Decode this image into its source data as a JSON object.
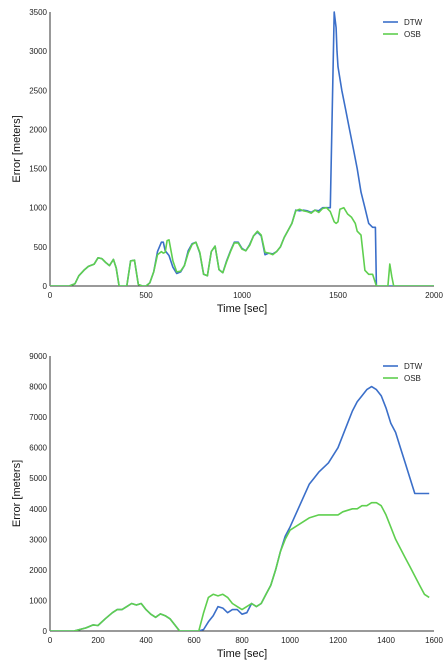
{
  "chart_data": [
    {
      "type": "line",
      "xlabel": "Time [sec]",
      "ylabel": "Error [meters]",
      "xlim": [
        0,
        2000
      ],
      "ylim": [
        0,
        3500
      ],
      "xticks": [
        "0",
        "500",
        "1000",
        "1500",
        "2000"
      ],
      "yticks": [
        "0",
        "500",
        "1000",
        "1500",
        "2000",
        "2500",
        "3000",
        "3500"
      ],
      "legend": "top-right",
      "grid": false,
      "series": [
        {
          "name": "DTW",
          "color": "#3b6fc9",
          "x": [
            0,
            100,
            130,
            150,
            180,
            200,
            230,
            250,
            270,
            290,
            310,
            330,
            345,
            360,
            380,
            400,
            420,
            440,
            460,
            480,
            500,
            520,
            540,
            560,
            580,
            590,
            600,
            620,
            640,
            660,
            680,
            700,
            720,
            740,
            760,
            780,
            800,
            820,
            840,
            860,
            880,
            900,
            920,
            940,
            960,
            980,
            1000,
            1020,
            1040,
            1060,
            1080,
            1100,
            1120,
            1140,
            1160,
            1180,
            1200,
            1220,
            1240,
            1260,
            1280,
            1300,
            1320,
            1340,
            1360,
            1380,
            1400,
            1420,
            1440,
            1460,
            1480,
            1490,
            1495,
            1500,
            1520,
            1540,
            1560,
            1580,
            1600,
            1620,
            1640,
            1660,
            1680,
            1695,
            1700,
            1710,
            1720,
            1740,
            1760,
            1770,
            1780,
            1790,
            1800,
            1850,
            2000
          ],
          "y": [
            0,
            0,
            30,
            130,
            210,
            250,
            280,
            360,
            350,
            300,
            260,
            340,
            230,
            0,
            0,
            0,
            320,
            330,
            20,
            0,
            0,
            40,
            180,
            440,
            560,
            560,
            450,
            390,
            240,
            160,
            180,
            260,
            450,
            540,
            560,
            420,
            150,
            130,
            440,
            510,
            210,
            170,
            320,
            450,
            560,
            560,
            480,
            450,
            530,
            640,
            690,
            640,
            400,
            420,
            410,
            440,
            500,
            620,
            710,
            800,
            970,
            960,
            970,
            960,
            940,
            970,
            960,
            1000,
            1000,
            1000,
            3500,
            3300,
            3000,
            2800,
            2500,
            2250,
            2000,
            1750,
            1500,
            1200,
            1000,
            800,
            750,
            750,
            0,
            0,
            0,
            0,
            0,
            0,
            0,
            0,
            0,
            0,
            0
          ]
        },
        {
          "name": "OSB",
          "color": "#5fcf4f",
          "x": [
            0,
            100,
            130,
            150,
            180,
            200,
            230,
            250,
            270,
            290,
            310,
            330,
            345,
            360,
            380,
            400,
            420,
            440,
            460,
            480,
            500,
            520,
            540,
            560,
            580,
            590,
            600,
            610,
            620,
            640,
            660,
            680,
            700,
            720,
            740,
            760,
            780,
            800,
            820,
            840,
            860,
            880,
            900,
            920,
            940,
            960,
            980,
            1000,
            1020,
            1040,
            1060,
            1080,
            1100,
            1120,
            1140,
            1160,
            1180,
            1200,
            1220,
            1240,
            1260,
            1280,
            1300,
            1320,
            1340,
            1360,
            1380,
            1400,
            1420,
            1440,
            1460,
            1480,
            1490,
            1500,
            1510,
            1530,
            1550,
            1570,
            1590,
            1600,
            1620,
            1640,
            1660,
            1680,
            1700,
            1710,
            1720,
            1740,
            1760,
            1770,
            1780,
            1790,
            1800,
            1850,
            2000
          ],
          "y": [
            0,
            0,
            30,
            130,
            210,
            250,
            280,
            360,
            350,
            300,
            260,
            340,
            230,
            0,
            0,
            0,
            320,
            330,
            20,
            0,
            0,
            40,
            180,
            400,
            440,
            420,
            430,
            580,
            590,
            320,
            180,
            190,
            260,
            420,
            530,
            560,
            430,
            150,
            130,
            440,
            510,
            210,
            170,
            310,
            440,
            550,
            550,
            470,
            450,
            520,
            640,
            700,
            650,
            430,
            420,
            400,
            440,
            500,
            620,
            710,
            800,
            960,
            980,
            960,
            950,
            930,
            970,
            940,
            990,
            1000,
            950,
            820,
            800,
            820,
            980,
            1000,
            920,
            880,
            800,
            700,
            650,
            200,
            150,
            150,
            0,
            0,
            0,
            0,
            0,
            280,
            120,
            0,
            0,
            0,
            0
          ]
        }
      ]
    },
    {
      "type": "line",
      "xlabel": "Time [sec]",
      "ylabel": "Error [meters]",
      "xlim": [
        0,
        1600
      ],
      "ylim": [
        0,
        9000
      ],
      "xticks": [
        "0",
        "200",
        "400",
        "600",
        "800",
        "1000",
        "1200",
        "1400",
        "1600"
      ],
      "yticks": [
        "0",
        "1000",
        "2000",
        "3000",
        "4000",
        "5000",
        "6000",
        "7000",
        "8000",
        "9000"
      ],
      "legend": "top-right",
      "grid": false,
      "series": [
        {
          "name": "DTW",
          "color": "#3b6fc9",
          "x": [
            0,
            50,
            100,
            150,
            180,
            200,
            230,
            260,
            280,
            300,
            320,
            340,
            360,
            380,
            400,
            420,
            440,
            460,
            480,
            500,
            520,
            540,
            560,
            580,
            600,
            620,
            640,
            660,
            680,
            700,
            720,
            740,
            760,
            780,
            800,
            820,
            840,
            860,
            880,
            900,
            920,
            940,
            960,
            980,
            1000,
            1040,
            1080,
            1100,
            1120,
            1160,
            1200,
            1220,
            1240,
            1260,
            1280,
            1300,
            1320,
            1340,
            1360,
            1380,
            1400,
            1420,
            1440,
            1460,
            1480,
            1500,
            1520,
            1540,
            1560,
            1580
          ],
          "y": [
            0,
            0,
            0,
            100,
            200,
            180,
            400,
            600,
            700,
            700,
            800,
            900,
            850,
            900,
            700,
            550,
            450,
            560,
            500,
            400,
            200,
            0,
            0,
            0,
            0,
            0,
            50,
            300,
            500,
            800,
            750,
            600,
            700,
            700,
            550,
            600,
            900,
            800,
            900,
            1200,
            1500,
            2000,
            2600,
            3100,
            3400,
            4100,
            4800,
            5000,
            5200,
            5500,
            6000,
            6400,
            6800,
            7200,
            7500,
            7700,
            7900,
            8000,
            7900,
            7700,
            7300,
            6800,
            6500,
            6000,
            5500,
            5000,
            4500,
            4500,
            4500,
            4500
          ]
        },
        {
          "name": "OSB",
          "color": "#5fcf4f",
          "x": [
            0,
            50,
            100,
            150,
            180,
            200,
            230,
            260,
            280,
            300,
            320,
            340,
            360,
            380,
            400,
            420,
            440,
            460,
            480,
            500,
            520,
            540,
            560,
            580,
            600,
            620,
            640,
            660,
            680,
            700,
            720,
            740,
            760,
            780,
            800,
            820,
            840,
            860,
            880,
            900,
            920,
            940,
            960,
            980,
            1000,
            1040,
            1080,
            1100,
            1120,
            1160,
            1200,
            1220,
            1240,
            1260,
            1280,
            1300,
            1320,
            1340,
            1360,
            1380,
            1400,
            1420,
            1440,
            1460,
            1480,
            1500,
            1520,
            1540,
            1560,
            1580
          ],
          "y": [
            0,
            0,
            0,
            100,
            200,
            180,
            400,
            600,
            700,
            700,
            800,
            900,
            850,
            900,
            700,
            550,
            450,
            560,
            500,
            400,
            200,
            0,
            0,
            0,
            0,
            0,
            600,
            1100,
            1200,
            1150,
            1200,
            1100,
            900,
            800,
            700,
            800,
            900,
            800,
            900,
            1200,
            1500,
            2000,
            2600,
            3000,
            3300,
            3500,
            3700,
            3750,
            3800,
            3800,
            3800,
            3900,
            3950,
            4000,
            4000,
            4100,
            4100,
            4200,
            4200,
            4100,
            3800,
            3400,
            3000,
            2700,
            2400,
            2100,
            1800,
            1500,
            1200,
            1100
          ]
        }
      ]
    }
  ]
}
